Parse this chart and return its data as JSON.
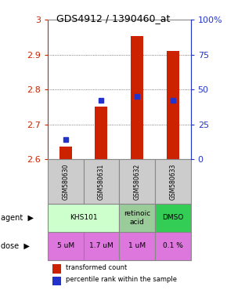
{
  "title": "GDS4912 / 1390460_at",
  "samples": [
    "GSM580630",
    "GSM580631",
    "GSM580632",
    "GSM580633"
  ],
  "bar_bottoms": [
    2.6,
    2.6,
    2.6,
    2.6
  ],
  "bar_tops": [
    2.637,
    2.75,
    2.952,
    2.91
  ],
  "percentile_values": [
    14,
    42,
    45,
    42
  ],
  "ylim_left": [
    2.6,
    3.0
  ],
  "ylim_right": [
    0,
    100
  ],
  "yticks_left": [
    2.6,
    2.7,
    2.8,
    2.9,
    3.0
  ],
  "yticks_right": [
    0,
    25,
    50,
    75,
    100
  ],
  "ytick_labels_left": [
    "2.6",
    "2.7",
    "2.8",
    "2.9",
    "3"
  ],
  "ytick_labels_right": [
    "0",
    "25",
    "50",
    "75",
    "100%"
  ],
  "bar_color": "#cc2200",
  "dot_color": "#2233cc",
  "agents": [
    "KHS101",
    "KHS101",
    "retinoic\nacid",
    "DMSO"
  ],
  "agent_colors": [
    "#ccffcc",
    "#ccffcc",
    "#99cc99",
    "#33cc55"
  ],
  "doses": [
    "5 uM",
    "1.7 uM",
    "1 uM",
    "0.1 %"
  ],
  "dose_colors": [
    "#dd77dd",
    "#dd77dd",
    "#dd77dd",
    "#dd77dd"
  ],
  "sample_bg": "#cccccc",
  "grid_color": "#555555",
  "left_axis_color": "#cc2200",
  "right_axis_color": "#2233cc",
  "border_color": "#888888"
}
